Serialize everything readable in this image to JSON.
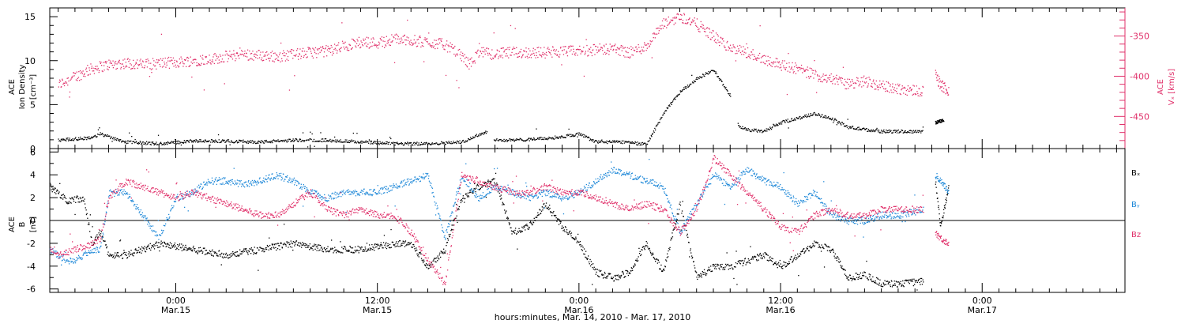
{
  "colors": {
    "black": "#000000",
    "pink": "#e0306a",
    "blue": "#1e88d8"
  },
  "time_axis": {
    "range_hours": [
      -7.5,
      56.5
    ],
    "ticks": [
      {
        "hours": 0,
        "time": "0:00",
        "date": "Mar.15"
      },
      {
        "hours": 12,
        "time": "12:00",
        "date": "Mar.15"
      },
      {
        "hours": 24,
        "time": "0:00",
        "date": "Mar.16"
      },
      {
        "hours": 36,
        "time": "12:00",
        "date": "Mar.16"
      },
      {
        "hours": 48,
        "time": "0:00",
        "date": "Mar.17"
      }
    ],
    "xlabel": "hours:minutes, Mar. 14, 2010 - Mar. 17, 2010"
  },
  "panel1": {
    "ylabel": {
      "line1": "ACE",
      "line2": "Ion Density",
      "line3": "[cm⁻³]"
    },
    "ylabel_right": {
      "line1": "ACE",
      "line2": "Vₓ [km/s]"
    }
  },
  "panel2": {
    "ylabel": {
      "line1": "ACE",
      "line2": "B",
      "line3": "[nT]"
    },
    "legend": [
      {
        "label": "Bₓ",
        "color": "#000000"
      },
      {
        "label": "Bᵧ",
        "color": "#1e88d8"
      },
      {
        "label": "Bz",
        "color": "#e0306a"
      }
    ]
  },
  "chart_data": [
    {
      "type": "scatter",
      "title": "",
      "xlabel": "hours:minutes, Mar. 14, 2010 - Mar. 17, 2010",
      "ylabel": "ACE Ion Density [cm⁻³]",
      "ylim": [
        0,
        16
      ],
      "yticks": [
        0,
        5,
        10,
        15
      ],
      "y2label": "ACE Vₓ [km/s]",
      "y2lim": [
        -490,
        -315
      ],
      "y2ticks": [
        -350,
        -400,
        -450
      ],
      "x_unit": "hours from 0:00 Mar.15, 2010",
      "series": [
        {
          "name": "Ion Density",
          "axis": "left",
          "color": "#000000",
          "x": [
            -7,
            -5,
            -4.5,
            -3,
            -1,
            1,
            3,
            5,
            7,
            9,
            11,
            13,
            15,
            17,
            18.5,
            19,
            20,
            22,
            23,
            24,
            25,
            27,
            28,
            29,
            30,
            31,
            32,
            33,
            33.5,
            34,
            35,
            36,
            37,
            38,
            39,
            40,
            41,
            42,
            43,
            44.5
          ],
          "values": [
            1.0,
            1.3,
            1.7,
            0.8,
            0.6,
            0.9,
            0.9,
            0.8,
            1.0,
            1.0,
            0.8,
            0.6,
            0.6,
            0.8,
            2.0,
            1.0,
            1.0,
            1.2,
            1.4,
            1.7,
            0.8,
            0.8,
            0.5,
            4.0,
            6.5,
            8.0,
            9.0,
            6.0,
            2.5,
            2.2,
            2.0,
            3.0,
            3.5,
            4.0,
            3.5,
            2.5,
            2.2,
            2.0,
            2.0,
            2.0
          ],
          "gaps_after": [
            18.5,
            33
          ],
          "extra": {
            "x": [
              45.2,
              45.7
            ],
            "values": [
              3.0,
              3.3
            ]
          }
        },
        {
          "name": "Vₓ",
          "axis": "right",
          "color": "#e0306a",
          "x": [
            -7,
            -6,
            -5,
            -4,
            -3,
            -2,
            0,
            2,
            4,
            6,
            8,
            9,
            10,
            11,
            12,
            13,
            14,
            16,
            17,
            17.5,
            18,
            19,
            20,
            22,
            24,
            26,
            27,
            28,
            29,
            30,
            31,
            32,
            33,
            34,
            35,
            36,
            37,
            38,
            39,
            40,
            41,
            42,
            43,
            44.5
          ],
          "values": [
            -410,
            -400,
            -390,
            -385,
            -383,
            -385,
            -382,
            -378,
            -372,
            -375,
            -370,
            -368,
            -362,
            -357,
            -358,
            -353,
            -355,
            -360,
            -375,
            -385,
            -370,
            -372,
            -370,
            -370,
            -368,
            -365,
            -370,
            -362,
            -335,
            -325,
            -335,
            -350,
            -365,
            -370,
            -378,
            -385,
            -390,
            -398,
            -402,
            -410,
            -405,
            -412,
            -415,
            -418
          ],
          "extra": {
            "x": [
              45.2,
              45.5,
              46
            ],
            "values": [
              -398,
              -410,
              -418
            ]
          }
        }
      ]
    },
    {
      "type": "scatter",
      "title": "",
      "ylabel": "ACE B [nT]",
      "ylim": [
        -6.3,
        6.3
      ],
      "yticks": [
        -6,
        -4,
        -2,
        0,
        2,
        4,
        6
      ],
      "x_unit": "hours from 0:00 Mar.15, 2010",
      "series": [
        {
          "name": "Bₓ",
          "color": "#000000",
          "x": [
            -7.5,
            -6.5,
            -5.5,
            -5,
            -4.5,
            -4,
            -3,
            -1,
            1,
            3,
            5,
            7,
            9,
            11,
            13,
            14,
            15,
            16,
            17,
            18,
            19,
            20,
            21,
            22,
            23,
            24,
            25,
            26,
            27,
            28,
            29,
            30,
            31,
            32,
            33,
            34,
            35,
            36,
            37,
            38,
            39,
            40,
            41,
            42,
            43,
            44.5
          ],
          "values": [
            3.0,
            1.8,
            2.0,
            -2.0,
            -1.0,
            -3.0,
            -3.0,
            -2.0,
            -2.5,
            -3.0,
            -2.5,
            -2.0,
            -2.5,
            -2.5,
            -2.0,
            -2.0,
            -4.0,
            -2.5,
            2.0,
            3.0,
            3.5,
            -1.0,
            -0.5,
            1.5,
            -0.5,
            -2.0,
            -4.5,
            -5.0,
            -4.5,
            -2.0,
            -4.5,
            1.5,
            -5.0,
            -4.0,
            -4.0,
            -3.5,
            -3.0,
            -4.0,
            -3.0,
            -2.0,
            -2.5,
            -5.0,
            -4.7,
            -5.5,
            -5.5,
            -5.3
          ],
          "extra": {
            "x": [
              45.2,
              45.5,
              46
            ],
            "values": [
              3.5,
              -0.5,
              3.0
            ]
          }
        },
        {
          "name": "Bᵧ",
          "color": "#1e88d8",
          "x": [
            -7.5,
            -7,
            -6.5,
            -6,
            -5.5,
            -5,
            -4.5,
            -4,
            -3,
            -2,
            -1,
            0,
            1,
            2,
            3,
            4,
            5,
            6,
            7,
            8,
            9,
            10,
            11,
            12,
            13,
            14,
            15,
            16,
            17,
            18,
            19,
            20,
            21,
            22,
            23,
            24,
            25,
            26,
            27,
            28,
            29,
            30,
            31,
            32,
            33,
            34,
            35,
            36,
            37,
            38,
            39,
            40,
            41,
            42,
            43,
            44.5
          ],
          "values": [
            -2.5,
            -3.0,
            -3.5,
            -3.5,
            -3.0,
            -2.5,
            -2.5,
            2.5,
            2.5,
            0.5,
            -1.5,
            2.0,
            2.5,
            3.5,
            3.5,
            3.2,
            3.5,
            4.0,
            3.5,
            2.5,
            2.0,
            2.5,
            2.5,
            2.5,
            3.0,
            3.5,
            4.0,
            -1.5,
            4.0,
            2.0,
            3.0,
            2.5,
            2.0,
            2.5,
            2.0,
            2.5,
            3.5,
            4.5,
            4.0,
            3.5,
            3.0,
            -1.0,
            1.5,
            4.0,
            3.0,
            4.5,
            3.5,
            3.0,
            1.5,
            2.5,
            0.5,
            0.0,
            0.0,
            0.5,
            0.5,
            1.0
          ],
          "extra": {
            "x": [
              45.2,
              45.5,
              46
            ],
            "values": [
              4.0,
              3.5,
              2.5
            ]
          }
        },
        {
          "name": "Bz",
          "color": "#e0306a",
          "x": [
            -7.5,
            -7,
            -6,
            -5,
            -4.5,
            -4,
            -3,
            -2,
            -1,
            0,
            1,
            2,
            3,
            4,
            5,
            6,
            7,
            8,
            9,
            10,
            11,
            12,
            13,
            14,
            15,
            16,
            17,
            18,
            19,
            20,
            21,
            22,
            23,
            24,
            25,
            26,
            27,
            28,
            29,
            30,
            31,
            32,
            33,
            34,
            35,
            36,
            37,
            38,
            39,
            40,
            41,
            42,
            43,
            44.5
          ],
          "values": [
            -2.5,
            -3.0,
            -2.5,
            -2.0,
            -1.5,
            2.0,
            3.5,
            3.0,
            2.5,
            2.0,
            2.5,
            2.0,
            1.5,
            1.0,
            0.5,
            0.5,
            1.5,
            2.5,
            1.0,
            0.5,
            1.0,
            0.5,
            0.5,
            -1.0,
            -3.5,
            -5.5,
            4.0,
            3.5,
            3.0,
            2.5,
            2.5,
            3.0,
            2.5,
            2.5,
            2.0,
            1.5,
            1.0,
            1.5,
            1.0,
            -1.0,
            1.0,
            5.5,
            4.0,
            2.5,
            1.0,
            -0.5,
            -1.0,
            0.5,
            1.0,
            0.5,
            0.5,
            1.0,
            1.0,
            1.0
          ],
          "extra": {
            "x": [
              45.2,
              45.5,
              46
            ],
            "values": [
              -1.0,
              -1.5,
              -2.0
            ]
          }
        }
      ]
    }
  ]
}
